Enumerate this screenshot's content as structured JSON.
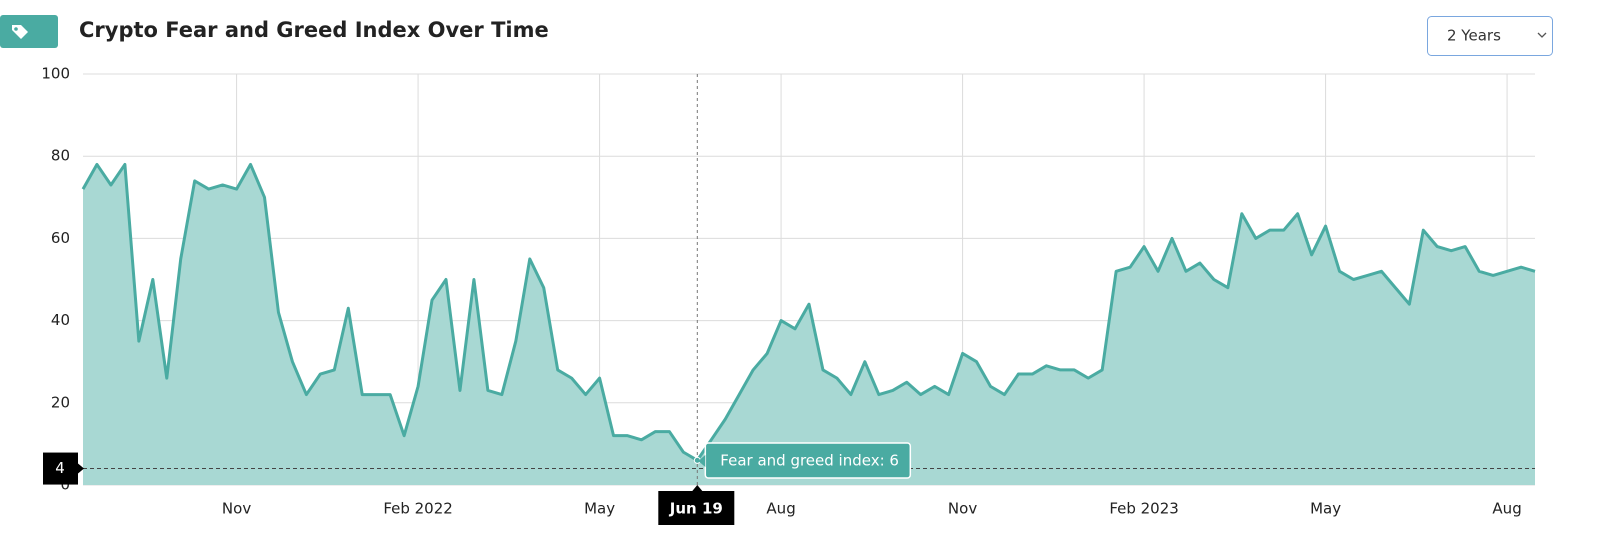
{
  "title": "Crypto Fear and Greed Index Over Time",
  "range_selector": "2 Years",
  "chart_data": {
    "type": "area",
    "categories": [
      null,
      null,
      null,
      null,
      null,
      null,
      null,
      null,
      null,
      null,
      null,
      "Nov",
      null,
      null,
      null,
      null,
      null,
      null,
      null,
      null,
      null,
      null,
      null,
      null,
      "Feb 2022",
      null,
      null,
      null,
      null,
      null,
      null,
      null,
      null,
      null,
      null,
      null,
      null,
      "May",
      null,
      null,
      null,
      null,
      null,
      null,
      "Jun 19",
      null,
      null,
      null,
      null,
      null,
      "Aug",
      null,
      null,
      null,
      null,
      null,
      null,
      null,
      null,
      null,
      null,
      null,
      null,
      "Nov",
      null,
      null,
      null,
      null,
      null,
      null,
      null,
      null,
      null,
      null,
      null,
      null,
      "Feb 2023",
      null,
      null,
      null,
      null,
      null,
      null,
      null,
      null,
      null,
      null,
      null,
      null,
      "May",
      null,
      null,
      null,
      null,
      null,
      null,
      null,
      null,
      null,
      null,
      null,
      null,
      "Aug",
      null,
      null
    ],
    "values": [
      72,
      78,
      73,
      78,
      35,
      50,
      26,
      55,
      74,
      72,
      73,
      72,
      78,
      70,
      42,
      30,
      22,
      27,
      28,
      43,
      22,
      22,
      22,
      12,
      24,
      45,
      50,
      23,
      50,
      23,
      22,
      35,
      55,
      48,
      28,
      26,
      22,
      26,
      12,
      12,
      11,
      13,
      13,
      8,
      6,
      11,
      16,
      22,
      28,
      32,
      40,
      38,
      44,
      28,
      26,
      22,
      30,
      22,
      23,
      25,
      22,
      24,
      22,
      32,
      30,
      24,
      22,
      27,
      27,
      29,
      28,
      28,
      26,
      28,
      52,
      53,
      58,
      52,
      60,
      52,
      54,
      50,
      48,
      66,
      60,
      62,
      62,
      66,
      56,
      63,
      52,
      50,
      51,
      52,
      48,
      44,
      62,
      58,
      57,
      58,
      52,
      51,
      52,
      53,
      52
    ],
    "color": "#4aaba2",
    "fill": "#a8d8d3",
    "ylim": [
      0,
      100
    ],
    "yticks": [
      0,
      20,
      40,
      60,
      80,
      100
    ],
    "grid": true,
    "crosshair": {
      "category": "Jun 19",
      "y": 4,
      "tooltip": "Fear and greed index: 6"
    }
  }
}
